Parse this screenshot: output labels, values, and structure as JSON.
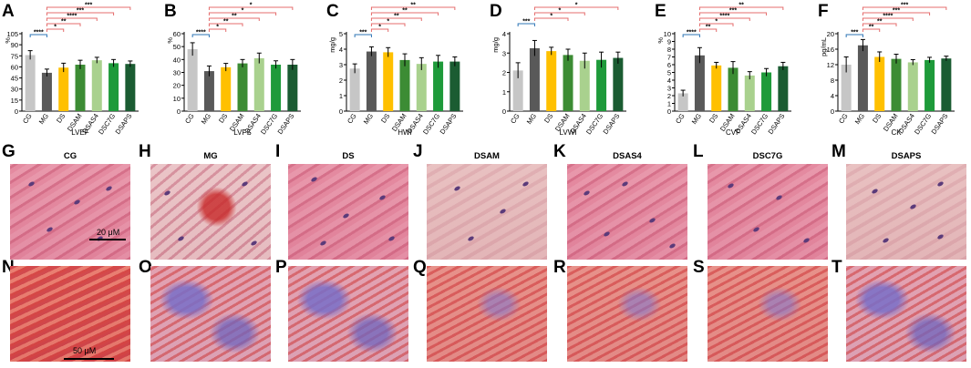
{
  "chart_data": [
    {
      "type": "bar",
      "letter": "A",
      "xlabel": "LVEF",
      "ylabel": "%",
      "categories": [
        "CG",
        "MG",
        "DS",
        "DSAM",
        "DSAS4",
        "DSC7G",
        "DSAPS"
      ],
      "values": [
        76,
        52,
        59,
        63,
        69,
        65,
        64
      ],
      "errors": [
        6,
        5,
        6,
        6,
        4,
        5,
        4
      ],
      "ylim": [
        0,
        105
      ],
      "yticks": [
        0,
        15,
        30,
        45,
        60,
        75,
        90,
        105
      ],
      "significance": [
        {
          "to": "MG",
          "label": "****",
          "color": "blue"
        },
        {
          "to": "DS",
          "label": "*",
          "color": "red"
        },
        {
          "to": "DSAM",
          "label": "**",
          "color": "red"
        },
        {
          "to": "DSAS4",
          "label": "****",
          "color": "red"
        },
        {
          "to": "DSC7G",
          "label": "***",
          "color": "red"
        },
        {
          "to": "DSAPS",
          "label": "***",
          "color": "red"
        }
      ]
    },
    {
      "type": "bar",
      "letter": "B",
      "xlabel": "LVFS",
      "ylabel": "%",
      "categories": [
        "CG",
        "MG",
        "DS",
        "DSAM",
        "DSAS4",
        "DSC7G",
        "DSAPS"
      ],
      "values": [
        48,
        31,
        34,
        37,
        41,
        36,
        36
      ],
      "errors": [
        5,
        4,
        3,
        3,
        4,
        3,
        4
      ],
      "ylim": [
        0,
        60
      ],
      "yticks": [
        0,
        10,
        20,
        30,
        40,
        50,
        60
      ],
      "significance": [
        {
          "to": "MG",
          "label": "****",
          "color": "blue"
        },
        {
          "to": "DS",
          "label": "*",
          "color": "red"
        },
        {
          "to": "DSAM",
          "label": "**",
          "color": "red"
        },
        {
          "to": "DSAS4",
          "label": "**",
          "color": "red"
        },
        {
          "to": "DSC7G",
          "label": "*",
          "color": "red"
        },
        {
          "to": "DSAPS",
          "label": "*",
          "color": "red"
        }
      ]
    },
    {
      "type": "bar",
      "letter": "C",
      "xlabel": "HWI",
      "ylabel": "mg/g",
      "categories": [
        "CG",
        "MG",
        "DS",
        "DSAM",
        "DSAS4",
        "DSC7G",
        "DSAPS"
      ],
      "values": [
        2.75,
        3.85,
        3.8,
        3.3,
        3.05,
        3.2,
        3.2
      ],
      "errors": [
        0.3,
        0.3,
        0.3,
        0.4,
        0.4,
        0.4,
        0.3
      ],
      "ylim": [
        0,
        5
      ],
      "yticks": [
        0,
        1,
        2,
        3,
        4,
        5
      ],
      "significance": [
        {
          "to": "MG",
          "label": "***",
          "color": "blue"
        },
        {
          "to": "DS",
          "label": "*",
          "color": "red"
        },
        {
          "to": "DSAM",
          "label": "*",
          "color": "red"
        },
        {
          "to": "DSAS4",
          "label": "**",
          "color": "red"
        },
        {
          "to": "DSC7G",
          "label": "**",
          "color": "red"
        },
        {
          "to": "DSAPS",
          "label": "**",
          "color": "red"
        }
      ]
    },
    {
      "type": "bar",
      "letter": "D",
      "xlabel": "LVWI",
      "ylabel": "mg/g",
      "categories": [
        "CG",
        "MG",
        "DS",
        "DSAM",
        "DSAS4",
        "DSC7G",
        "DSAPS"
      ],
      "values": [
        2.1,
        3.25,
        3.1,
        2.9,
        2.6,
        2.65,
        2.75
      ],
      "errors": [
        0.4,
        0.4,
        0.2,
        0.3,
        0.4,
        0.4,
        0.3
      ],
      "ylim": [
        0,
        4
      ],
      "yticks": [
        0,
        1,
        2,
        3,
        4
      ],
      "significance": [
        {
          "to": "MG",
          "label": "***",
          "color": "blue"
        },
        {
          "to": "DSAM",
          "label": "*",
          "color": "red"
        },
        {
          "to": "DSAS4",
          "label": "*",
          "color": "red"
        },
        {
          "to": "DSAPS",
          "label": "*",
          "color": "red"
        }
      ]
    },
    {
      "type": "bar",
      "letter": "E",
      "xlabel": "CVF",
      "ylabel": "%",
      "categories": [
        "CG",
        "MG",
        "DS",
        "DSAM",
        "DSAS4",
        "DSC7G",
        "DSAPS"
      ],
      "values": [
        2.3,
        7.2,
        5.9,
        5.6,
        4.6,
        5.0,
        5.8
      ],
      "errors": [
        0.4,
        1.0,
        0.4,
        0.8,
        0.5,
        0.5,
        0.5
      ],
      "ylim": [
        0,
        10
      ],
      "yticks": [
        0,
        1,
        2,
        3,
        4,
        5,
        6,
        7,
        8,
        9,
        10
      ],
      "significance": [
        {
          "to": "MG",
          "label": "****",
          "color": "blue"
        },
        {
          "to": "DS",
          "label": "**",
          "color": "red"
        },
        {
          "to": "DSAM",
          "label": "*",
          "color": "red"
        },
        {
          "to": "DSAS4",
          "label": "****",
          "color": "red"
        },
        {
          "to": "DSC7G",
          "label": "***",
          "color": "red"
        },
        {
          "to": "DSAPS",
          "label": "**",
          "color": "red"
        }
      ]
    },
    {
      "type": "bar",
      "letter": "F",
      "xlabel": "CK",
      "ylabel": "pg/mL",
      "categories": [
        "CG",
        "MG",
        "DS",
        "DSAM",
        "DSAS4",
        "DSC7G",
        "DSAPS"
      ],
      "values": [
        12,
        17,
        14,
        13.5,
        12.6,
        13.2,
        13.6
      ],
      "errors": [
        2,
        1.5,
        1.3,
        1.2,
        0.7,
        0.7,
        0.6
      ],
      "ylim": [
        0,
        20
      ],
      "yticks": [
        0,
        4,
        8,
        12,
        16,
        20
      ],
      "significance": [
        {
          "to": "MG",
          "label": "***",
          "color": "blue"
        },
        {
          "to": "DS",
          "label": "**",
          "color": "red"
        },
        {
          "to": "DSAM",
          "label": "**",
          "color": "red"
        },
        {
          "to": "DSAS4",
          "label": "****",
          "color": "red"
        },
        {
          "to": "DSC7G",
          "label": "***",
          "color": "red"
        },
        {
          "to": "DSAPS",
          "label": "***",
          "color": "red"
        }
      ]
    }
  ],
  "bar_colors": [
    "#c6c6c6",
    "#595959",
    "#ffc000",
    "#3c8c34",
    "#a9d18e",
    "#1e9a3a",
    "#1b5c32"
  ],
  "significance_colors": {
    "blue": "#2e75b6",
    "red": "#e46c6c"
  },
  "he_panels": [
    {
      "letter": "G",
      "label": "CG",
      "scale_bar": "20 μM"
    },
    {
      "letter": "H",
      "label": "MG"
    },
    {
      "letter": "I",
      "label": "DS"
    },
    {
      "letter": "J",
      "label": "DSAM"
    },
    {
      "letter": "K",
      "label": "DSAS4"
    },
    {
      "letter": "L",
      "label": "DSC7G"
    },
    {
      "letter": "M",
      "label": "DSAPS"
    }
  ],
  "masson_panels": [
    {
      "letter": "N",
      "scale_bar": "50 μM"
    },
    {
      "letter": "O"
    },
    {
      "letter": "P"
    },
    {
      "letter": "Q"
    },
    {
      "letter": "R"
    },
    {
      "letter": "S"
    },
    {
      "letter": "T"
    }
  ]
}
